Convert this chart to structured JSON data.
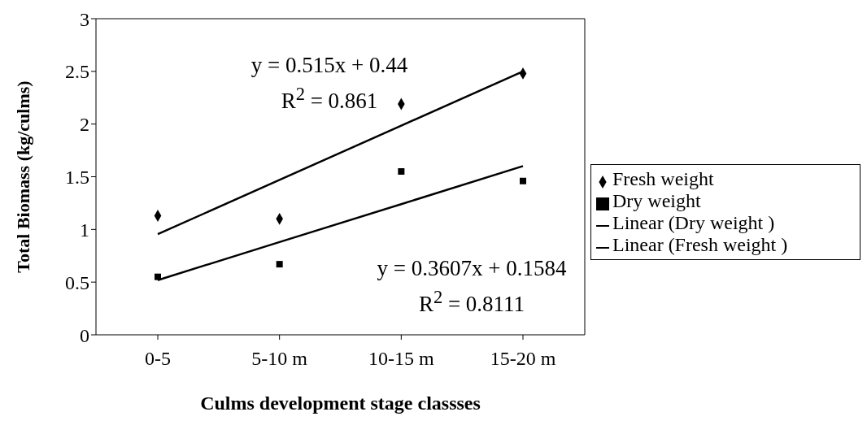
{
  "chart_data": {
    "type": "scatter",
    "xlabel": "Culms development stage classses",
    "ylabel": "Total Biomass (kg/culms)",
    "categories": [
      "0-5",
      "5-10 m",
      "10-15 m",
      "15-20 m"
    ],
    "series": [
      {
        "name": "Fresh weight",
        "marker": "diamond",
        "color": "#000000",
        "values": [
          1.13,
          1.1,
          2.19,
          2.48
        ]
      },
      {
        "name": "Dry weight",
        "marker": "square",
        "color": "#000000",
        "values": [
          0.55,
          0.67,
          1.55,
          1.46
        ]
      },
      {
        "name": "Linear (Dry weight )",
        "type": "line",
        "marker": "none",
        "color": "#000000",
        "values": [
          0.519,
          0.88,
          1.24,
          1.601
        ]
      },
      {
        "name": "Linear (Fresh weight )",
        "type": "line",
        "marker": "none",
        "color": "#000000",
        "values": [
          0.955,
          1.47,
          1.985,
          2.5
        ]
      }
    ],
    "ylim": [
      0,
      3
    ],
    "yticks": [
      0,
      0.5,
      1,
      1.5,
      2,
      2.5,
      3
    ],
    "legend": "right",
    "annotations": [
      "y = 0.515x + 0.44",
      "R$^{2}$ = 0.861",
      "y = 0.3607x + 0.1584",
      "R$^{2}$ = 0.8111"
    ]
  }
}
